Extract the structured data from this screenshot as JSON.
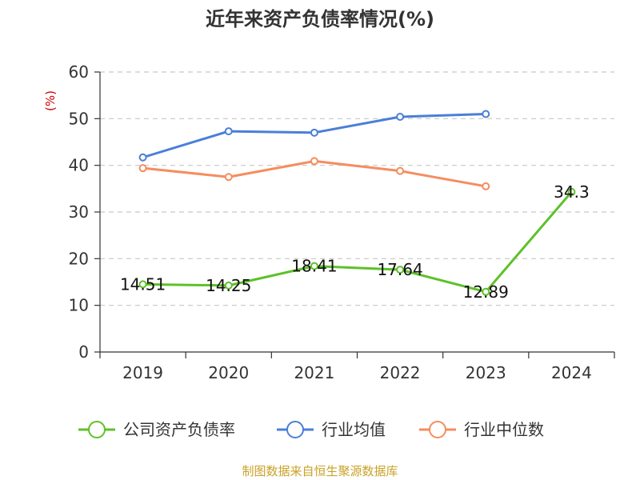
{
  "chart_data": {
    "type": "line",
    "title": "近年来资产负债率情况(%)",
    "ylabel": "(%)",
    "xlabel": "",
    "categories": [
      "2019",
      "2020",
      "2021",
      "2022",
      "2023",
      "2024"
    ],
    "ylim": [
      0,
      60
    ],
    "yticks": [
      "0",
      "10",
      "20",
      "30",
      "40",
      "50",
      "60"
    ],
    "grid": true,
    "legend_position": "bottom",
    "series": [
      {
        "name": "公司资产负债率",
        "color": "#5ec129",
        "values": [
          14.51,
          14.25,
          18.41,
          17.64,
          12.89,
          34.3
        ],
        "labels": [
          "14.51",
          "14.25",
          "18.41",
          "17.64",
          "12.89",
          "34.3"
        ]
      },
      {
        "name": "行业均值",
        "color": "#4a7fd8",
        "values": [
          41.7,
          47.3,
          47.0,
          50.4,
          51.0,
          null
        ]
      },
      {
        "name": "行业中位数",
        "color": "#f58d5e",
        "values": [
          39.4,
          37.5,
          40.9,
          38.8,
          35.5,
          null
        ]
      }
    ]
  },
  "source_text": "制图数据来自恒生聚源数据库"
}
